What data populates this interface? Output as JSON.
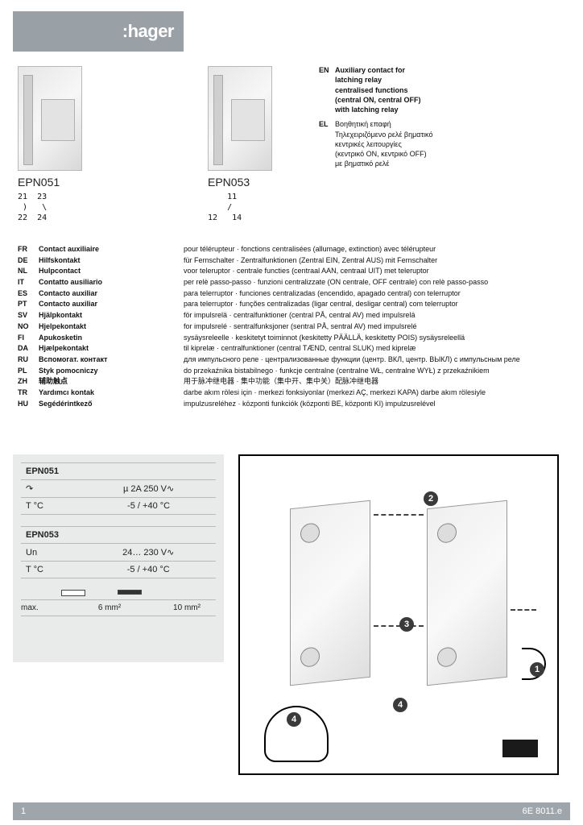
{
  "brand": ":hager",
  "products": {
    "p1": {
      "code": "EPN051",
      "contacts": "21  23\n )   \\\n22  24"
    },
    "p2": {
      "code": "EPN053",
      "contacts": "    11\n    /\n12   14"
    }
  },
  "title_block": {
    "lines": [
      {
        "codes": "EN",
        "bold": "Auxiliary contact for",
        "rest": ""
      },
      {
        "codes": "",
        "bold": "latching relay",
        "rest": ""
      },
      {
        "codes": "",
        "bold": "centralised functions",
        "rest": ""
      },
      {
        "codes": "",
        "bold": "(central ON, central OFF)",
        "rest": ""
      },
      {
        "codes": "",
        "bold": "with latching relay",
        "rest": ""
      },
      {
        "codes": "EL",
        "text": "Βοηθητική επαφή"
      },
      {
        "codes": "",
        "text": "Τηλεχειριζόμενο ρελέ βηματικό"
      },
      {
        "codes": "",
        "text": "κεντρικές λειτουργίες"
      },
      {
        "codes": "",
        "text": "(κεντρικό ON, κεντρικό OFF)"
      },
      {
        "codes": "",
        "text": "με βηματικό ρελέ"
      }
    ]
  },
  "multilang": [
    {
      "code": "FR",
      "name": "Contact auxiliaire",
      "desc": "pour télérupteur · fonctions centralisées (allumage, extinction) avec télérupteur"
    },
    {
      "code": "DE",
      "name": "Hilfskontakt",
      "desc": "für Fernschalter · Zentralfunktionen (Zentral EIN, Zentral AUS) mit Fernschalter"
    },
    {
      "code": "NL",
      "name": "Hulpcontact",
      "desc": "voor teleruptor · centrale functies (centraal AAN, centraal UIT) met teleruptor"
    },
    {
      "code": "IT",
      "name": "Contatto ausiliario",
      "desc": "per relè passo-passo · funzioni centralizzate (ON centrale, OFF centrale) con relè passo-passo"
    },
    {
      "code": "ES",
      "name": "Contacto auxiliar",
      "desc": "para telerruptor · funciones centralizadas (encendido, apagado central) con telerruptor"
    },
    {
      "code": "PT",
      "name": "Contacto auxiliar",
      "desc": "para telerruptor · funções centralizadas (ligar central, desligar central) com telerruptor"
    },
    {
      "code": "SV",
      "name": "Hjälpkontakt",
      "desc": "för impulsrelä · centralfunktioner (central PÅ, central AV) med impulsrelä"
    },
    {
      "code": "NO",
      "name": "Hjelpekontakt",
      "desc": "for impulsrelé · sentralfunksjoner (sentral PÅ, sentral AV) med impulsrelé"
    },
    {
      "code": "FI",
      "name": "Apukosketin",
      "desc": "sysäysreleelle · keskitetyt toiminnot (keskitetty PÄÄLLÄ, keskitetty POIS) sysäysreleellä"
    },
    {
      "code": "DA",
      "name": "Hjælpekontakt",
      "desc": "til kiprelæ · centralfunktioner (central TÆND, central SLUK) med kiprelæ"
    },
    {
      "code": "RU",
      "name": "Вспомогат. контакт",
      "desc": "для импульсного реле · централизованные функции (центр. ВКЛ, центр. ВЫКЛ) с импульсным реле"
    },
    {
      "code": "PL",
      "name": "Styk pomocniczy",
      "desc": "do przekaźnika bistabilnego · funkcje centralne (centralne WŁ, centralne WYŁ) z przekaźnikiem"
    },
    {
      "code": "ZH",
      "name": "辅助触点",
      "desc": "用于脉冲继电器 · 集中功能（集中开、集中关）配脉冲继电器"
    },
    {
      "code": "TR",
      "name": "Yardımcı kontak",
      "desc": "darbe akım rölesi için · merkezi fonksiyonlar (merkezi AÇ, merkezi KAPA) darbe akım rölesiyle"
    },
    {
      "code": "HU",
      "name": "Segédérintkező",
      "desc": "impulzusreléhez · központi funkciók (központi BE, központi KI) impulzusrelével"
    }
  ],
  "specs": {
    "epn051": {
      "header": "EPN051",
      "row1_label": "↷",
      "row1_val": "µ 2A  250 V∿",
      "row2_label": "T °C",
      "row2_val": "-5 / +40 °C"
    },
    "epn053": {
      "header": "EPN053",
      "row1_label": "Un",
      "row1_val": "24… 230 V∿",
      "row2_label": "T °C",
      "row2_val": "-5 / +40 °C"
    },
    "wiresize": {
      "label": "max.",
      "v1": "6 mm²",
      "v2": "10 mm²"
    }
  },
  "callouts": {
    "c1": "1",
    "c2": "2",
    "c3": "3",
    "c4": "4"
  },
  "footer": {
    "page": "1",
    "docref": "6E 8011.e"
  },
  "colors": {
    "band": "#9aa1a6",
    "spec_bg": "#e9eaea",
    "text": "#111111",
    "border": "#000000"
  }
}
